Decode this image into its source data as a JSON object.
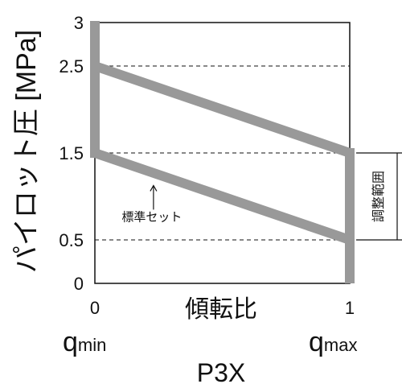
{
  "chart_data": {
    "type": "line",
    "ylabel": "パイロット圧 [MPa]",
    "xlabel": "傾転比",
    "ylim": [
      0,
      3
    ],
    "xlim": [
      0,
      1
    ],
    "y_ticks": [
      {
        "value": 0,
        "label": "0"
      },
      {
        "value": 0.5,
        "label": "0.5"
      },
      {
        "value": 1.5,
        "label": "1.5"
      },
      {
        "value": 2.5,
        "label": "2.5"
      },
      {
        "value": 3,
        "label": "3"
      }
    ],
    "x_ticks": [
      {
        "value": 0,
        "label": "0"
      },
      {
        "value": 1,
        "label": "1"
      }
    ],
    "dashed_gridlines_y": [
      0.5,
      1.5,
      2.5
    ],
    "band": {
      "upper": [
        {
          "x": 0,
          "y": 2.5
        },
        {
          "x": 1,
          "y": 1.5
        }
      ],
      "lower": [
        {
          "x": 0,
          "y": 1.5
        },
        {
          "x": 1,
          "y": 0.5
        }
      ],
      "left_edge": {
        "x": 0,
        "y_from": 1.5,
        "y_to": 3
      },
      "right_edge": {
        "x": 1,
        "y_from": 0,
        "y_to": 1.5
      },
      "color": "#999999"
    },
    "annotations": {
      "standard_set": {
        "text": "標準セット",
        "points_to": {
          "x": 0.23,
          "y": 1.2
        }
      },
      "adjust_range": {
        "text": "調整範囲",
        "y_from": 0.5,
        "y_to": 1.5
      }
    },
    "x_end_labels": {
      "left": {
        "base": "q",
        "sub": "min"
      },
      "right": {
        "base": "q",
        "sub": "max"
      }
    },
    "model": "P3X"
  }
}
